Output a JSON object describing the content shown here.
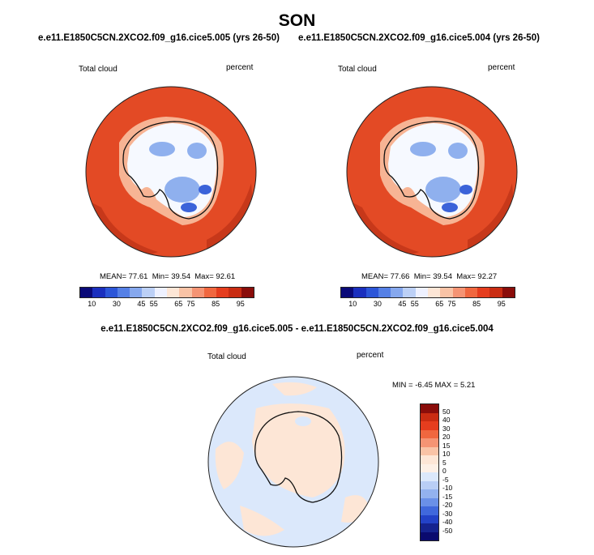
{
  "header": {
    "season": "SON",
    "run_case": "e.e11.E1850C5CN.2XCO2.f09_g16.cice5.005 (yrs 26-50)",
    "run_control": "e.e11.E1850C5CN.2XCO2.f09_g16.cice5.004 (yrs 26-50)",
    "diff_title": "e.e11.E1850C5CN.2XCO2.f09_g16.cice5.005 - e.e11.E1850C5CN.2XCO2.f09_g16.cice5.004"
  },
  "panels": {
    "case": {
      "variable": "Total cloud",
      "units": "percent",
      "mean_label": "MEAN=",
      "mean": "77.61",
      "min_label": "Min=",
      "min": "39.54",
      "max_label": "Max=",
      "max": "92.61"
    },
    "control": {
      "variable": "Total cloud",
      "units": "percent",
      "mean_label": "MEAN=",
      "mean": "77.66",
      "min_label": "Min=",
      "min": "39.54",
      "max_label": "Max=",
      "max": "92.27"
    },
    "difference": {
      "variable": "Total cloud",
      "units": "percent",
      "min_label": "MIN =",
      "min": "-6.45",
      "max_label": "MAX =",
      "max": "5.21"
    }
  },
  "colorbar_main": {
    "colors": [
      "#0a0a78",
      "#1a2fbe",
      "#2c56d8",
      "#5580e6",
      "#86a8ee",
      "#bcd0f6",
      "#eef1ff",
      "#fde6d6",
      "#f9c3a6",
      "#f59474",
      "#f0673f",
      "#e53d1e",
      "#c92c12",
      "#8a0d0a"
    ],
    "tick_labels": [
      "10",
      "30",
      "45",
      "55",
      "65",
      "75",
      "85",
      "95"
    ]
  },
  "colorbar_diff": {
    "colors": [
      "#8a0d0a",
      "#c92c12",
      "#e53d1e",
      "#f0673f",
      "#f59474",
      "#f9c3a6",
      "#fde6d6",
      "#fdf0e6",
      "#dbe8fb",
      "#b9cef5",
      "#93b2ef",
      "#6a90e8",
      "#4068dc",
      "#2342c7",
      "#15238f",
      "#0a0a6e"
    ],
    "tick_labels": [
      "50",
      "40",
      "30",
      "20",
      "15",
      "10",
      "5",
      "0",
      "-5",
      "-10",
      "-15",
      "-20",
      "-30",
      "-40",
      "-50"
    ]
  },
  "map_colors": {
    "ocean_ring": "#e34a25",
    "ocean_dark": "#c7381a",
    "antarctica_light": "#f6f9ff",
    "antarctica_blue": "#8fb0ee",
    "antarctica_deepblue": "#3b63d9",
    "coast_band": "#f7b494",
    "diff_base": "#dbe8fb",
    "diff_patch": "#fde6d6"
  }
}
